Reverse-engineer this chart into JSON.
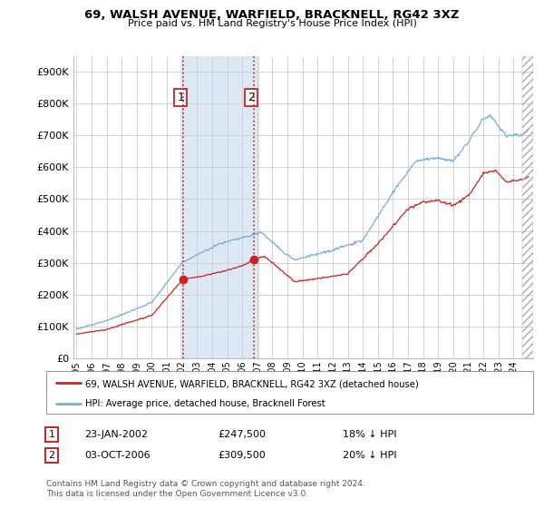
{
  "title": "69, WALSH AVENUE, WARFIELD, BRACKNELL, RG42 3XZ",
  "subtitle": "Price paid vs. HM Land Registry's House Price Index (HPI)",
  "ylabel_ticks": [
    "£0",
    "£100K",
    "£200K",
    "£300K",
    "£400K",
    "£500K",
    "£600K",
    "£700K",
    "£800K",
    "£900K"
  ],
  "ytick_values": [
    0,
    100000,
    200000,
    300000,
    400000,
    500000,
    600000,
    700000,
    800000,
    900000
  ],
  "ylim": [
    0,
    950000
  ],
  "xlim_start": 1994.8,
  "xlim_end": 2025.3,
  "hpi_color": "#7aafd4",
  "price_color": "#cc2222",
  "sale1_x": 2002.06,
  "sale1_y": 247500,
  "sale2_x": 2006.75,
  "sale2_y": 309500,
  "shade_x1": 2001.9,
  "shade_x2": 2007.1,
  "legend_line1": "69, WALSH AVENUE, WARFIELD, BRACKNELL, RG42 3XZ (detached house)",
  "legend_line2": "HPI: Average price, detached house, Bracknell Forest",
  "table_row1": [
    "1",
    "23-JAN-2002",
    "£247,500",
    "18% ↓ HPI"
  ],
  "table_row2": [
    "2",
    "03-OCT-2006",
    "£309,500",
    "20% ↓ HPI"
  ],
  "footnote": "Contains HM Land Registry data © Crown copyright and database right 2024.\nThis data is licensed under the Open Government Licence v3.0.",
  "background_color": "#ffffff",
  "plot_bg_color": "#ffffff",
  "grid_color": "#cccccc",
  "shade_color": "#dce9f5"
}
